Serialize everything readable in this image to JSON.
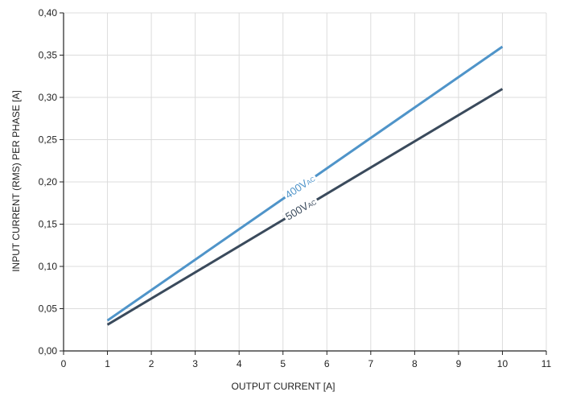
{
  "chart_data": {
    "type": "line",
    "title": "",
    "xlabel": "OUTPUT CURRENT [A]",
    "ylabel": "INPUT CURRENT (RMS)  PER PHASE [A]",
    "xlim": [
      0,
      11
    ],
    "ylim": [
      0,
      0.4
    ],
    "x_ticks": [
      "0",
      "1",
      "2",
      "3",
      "4",
      "5",
      "6",
      "7",
      "8",
      "9",
      "10",
      "11"
    ],
    "y_ticks": [
      "0,00",
      "0,05",
      "0,10",
      "0,15",
      "0,20",
      "0,25",
      "0,30",
      "0,35",
      "0,40"
    ],
    "grid": true,
    "legend": "none",
    "series": [
      {
        "name": "400V",
        "name_sub": "AC",
        "color": "#4f94c9",
        "x": [
          1,
          10
        ],
        "y": [
          0.036,
          0.36
        ],
        "label_at": 5
      },
      {
        "name": "500V",
        "name_sub": "AC",
        "color": "#3a4a5c",
        "x": [
          1,
          10
        ],
        "y": [
          0.031,
          0.31
        ],
        "label_at": 5
      }
    ]
  }
}
